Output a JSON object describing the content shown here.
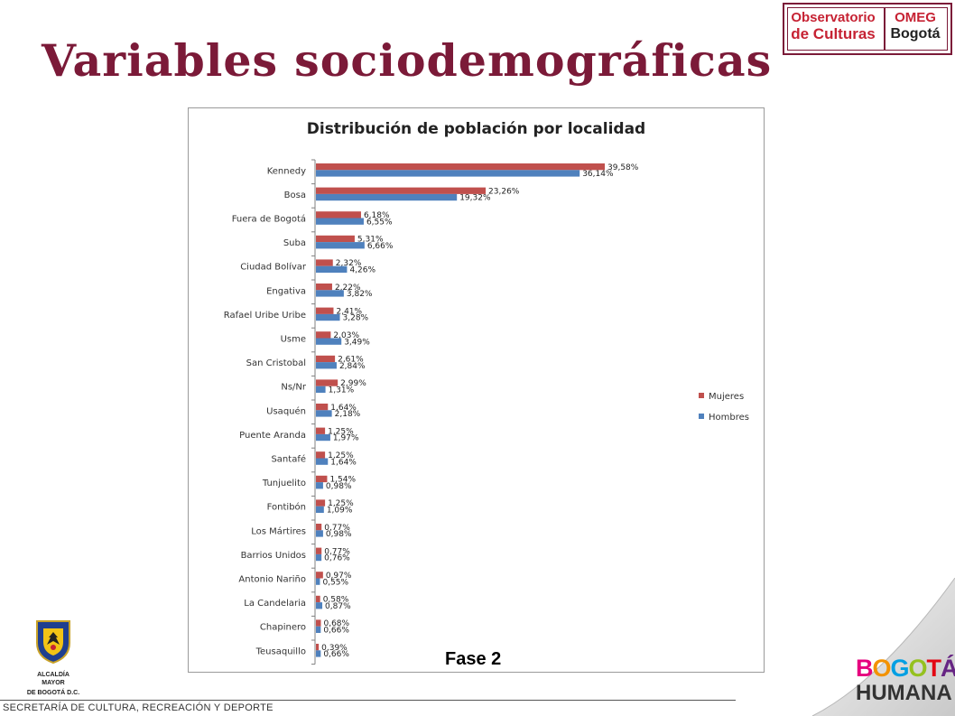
{
  "slide": {
    "title": "Variables sociodemográficas",
    "footer": "SECRETARÍA DE CULTURA, RECREACIÓN Y DEPORTE",
    "phase_label": "Fase 2"
  },
  "logos": {
    "observatorio_line1": "Observatorio",
    "observatorio_line2": "de Culturas",
    "omeg_line1": "OMEG",
    "omeg_line2": "Bogotá",
    "alcaldia_line1": "ALCALDÍA MAYOR",
    "alcaldia_line2": "DE BOGOTÁ D.C.",
    "bogota_humana_line1": "BOGOTÁ",
    "bogota_humana_line2": "HUMANA"
  },
  "colors": {
    "title": "#7b1a38",
    "mujeres": "#c0504d",
    "hombres": "#4f81bd",
    "bogota_letters": [
      "#e6007e",
      "#f39200",
      "#009fe3",
      "#95c11f",
      "#e30613",
      "#662483"
    ]
  },
  "chart_data": {
    "type": "bar",
    "orientation": "horizontal",
    "title": "Distribución de población por localidad",
    "xlabel": "",
    "ylabel": "",
    "xlim": [
      0,
      45
    ],
    "grid": false,
    "legend_position": "right",
    "categories": [
      "Kennedy",
      "Bosa",
      "Fuera de Bogotá",
      "Suba",
      "Ciudad Bolívar",
      "Engativa",
      "Rafael Uribe Uribe",
      "Usme",
      "San Cristobal",
      "Ns/Nr",
      "Usaquén",
      "Puente Aranda",
      "Santafé",
      "Tunjuelito",
      "Fontibón",
      "Los Mártires",
      "Barrios Unidos",
      "Antonio Nariño",
      "La Candelaria",
      "Chapinero",
      "Teusaquillo"
    ],
    "series": [
      {
        "name": "Mujeres",
        "values": [
          39.58,
          23.26,
          6.18,
          5.31,
          2.32,
          2.22,
          2.41,
          2.03,
          2.61,
          2.99,
          1.64,
          1.25,
          1.25,
          1.54,
          1.25,
          0.77,
          0.77,
          0.97,
          0.58,
          0.68,
          0.39
        ],
        "labels": [
          "39,58%",
          "23,26%",
          "6,18%",
          "5,31%",
          "2,32%",
          "2,22%",
          "2,41%",
          "2,03%",
          "2,61%",
          "2,99%",
          "1,64%",
          "1,25%",
          "1,25%",
          "1,54%",
          "1,25%",
          "0,77%",
          "0,77%",
          "0,97%",
          "0,58%",
          "0,68%",
          "0,39%"
        ]
      },
      {
        "name": "Hombres",
        "values": [
          36.14,
          19.32,
          6.55,
          6.66,
          4.26,
          3.82,
          3.28,
          3.49,
          2.84,
          1.31,
          2.18,
          1.97,
          1.64,
          0.98,
          1.09,
          0.98,
          0.76,
          0.55,
          0.87,
          0.66,
          0.66
        ],
        "labels": [
          "36,14%",
          "19,32%",
          "6,55%",
          "6,66%",
          "4,26%",
          "3,82%",
          "3,28%",
          "3,49%",
          "2,84%",
          "1,31%",
          "2,18%",
          "1,97%",
          "1,64%",
          "0,98%",
          "1,09%",
          "0,98%",
          "0,76%",
          "0,55%",
          "0,87%",
          "0,66%",
          "0,66%"
        ]
      }
    ]
  }
}
